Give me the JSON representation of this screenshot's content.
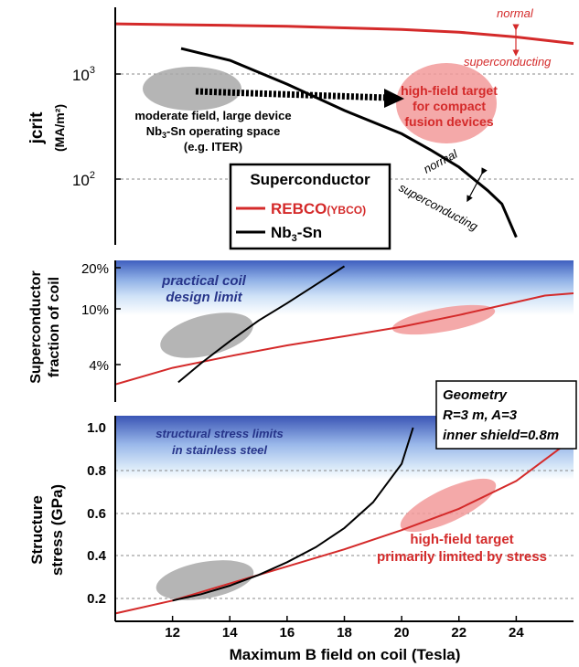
{
  "chart_data": [
    {
      "type": "line",
      "ylabel": "jcrit",
      "ylabel_unit": "(MA/m²)",
      "yscale": "log",
      "ylim": [
        30,
        4000
      ],
      "xlim": [
        10,
        26
      ],
      "yticks": [
        {
          "v": 1000,
          "base": "10",
          "exp": "3"
        },
        {
          "v": 100,
          "base": "10",
          "exp": "2"
        }
      ],
      "grid": "dashed at decades",
      "series": [
        {
          "name": "REBCO",
          "color": "#d42a2a",
          "x": [
            10,
            12,
            14,
            16,
            18,
            20,
            22,
            24,
            26
          ],
          "y": [
            3000,
            2950,
            2900,
            2850,
            2750,
            2650,
            2500,
            2250,
            1950
          ]
        },
        {
          "name": "Nb3-Sn",
          "color": "#000000",
          "x": [
            12.3,
            14,
            16,
            18,
            20,
            21,
            22,
            23,
            23.5,
            24
          ],
          "y": [
            1750,
            1350,
            800,
            450,
            270,
            190,
            130,
            78,
            58,
            28
          ]
        }
      ],
      "legend": {
        "title": "Superconductor",
        "rebco": "REBCO",
        "rebco_sub": "(YBCO)",
        "nb_main": "Nb",
        "nb_sub": "3",
        "nb_rest": "-Sn"
      },
      "annotations": {
        "normal_top": "normal",
        "superconducting_top": "superconducting",
        "normal_mid": "normal",
        "superconducting_mid": "superconducting",
        "iter_line1": "moderate field, large device",
        "iter_line2_a": "Nb",
        "iter_line2_sub": "3",
        "iter_line2_b": "-Sn operating space",
        "iter_line3": "(e.g. ITER)",
        "target_line1": "high-field target",
        "target_line2": "for compact",
        "target_line3": "fusion devices"
      }
    },
    {
      "type": "line",
      "ylabel_line1": "Superconductor",
      "ylabel_line2": "fraction of coil",
      "yscale": "log",
      "ylim": [
        2,
        24
      ],
      "xlim": [
        10,
        26
      ],
      "yticks": [
        "20%",
        "10%",
        "4%"
      ],
      "series": [
        {
          "name": "REBCO",
          "color": "#d42a2a",
          "x": [
            10,
            12,
            14,
            16,
            18,
            20,
            22,
            24,
            25,
            26
          ],
          "y": [
            2.8,
            3.7,
            4.5,
            5.4,
            6.3,
            7.4,
            9.0,
            11.2,
            12.5,
            13.0
          ]
        },
        {
          "name": "Nb3-Sn",
          "color": "#000000",
          "x": [
            12.2,
            13,
            14,
            15,
            16,
            17,
            18
          ],
          "y": [
            2.9,
            4.0,
            5.8,
            8.2,
            11.0,
            15.0,
            20.5
          ]
        }
      ],
      "annotations": {
        "limit_line1": "practical coil",
        "limit_line2": "design limit"
      }
    },
    {
      "type": "line",
      "ylabel_line1": "Structure",
      "ylabel_line2": "stress (GPa)",
      "ylim": [
        0.1,
        1.0
      ],
      "xlim": [
        10,
        26
      ],
      "yticks": [
        "1.0",
        "0.8",
        "0.6",
        "0.4",
        "0.2"
      ],
      "xticks": [
        "12",
        "14",
        "16",
        "18",
        "20",
        "22",
        "24"
      ],
      "xlabel": "Maximum B field on coil (Tesla)",
      "series": [
        {
          "name": "REBCO",
          "color": "#d42a2a",
          "x": [
            10,
            12,
            14,
            16,
            18,
            20,
            22,
            24,
            26
          ],
          "y": [
            0.13,
            0.19,
            0.27,
            0.35,
            0.43,
            0.52,
            0.62,
            0.75,
            0.95
          ]
        },
        {
          "name": "Nb3-Sn",
          "color": "#000000",
          "x": [
            12,
            13,
            14,
            15,
            16,
            17,
            18,
            19,
            20,
            20.4
          ],
          "y": [
            0.19,
            0.22,
            0.26,
            0.31,
            0.37,
            0.44,
            0.53,
            0.65,
            0.83,
            1.0
          ]
        }
      ],
      "annotations": {
        "limit_line1": "structural stress limits",
        "limit_line2": "in stainless steel",
        "target_line1": "high-field target",
        "target_line2": "primarily limited by stress"
      },
      "geometry_box": {
        "title": "Geometry",
        "line1": "R=3 m, A=3",
        "line2": "inner shield=0.8m"
      }
    }
  ]
}
